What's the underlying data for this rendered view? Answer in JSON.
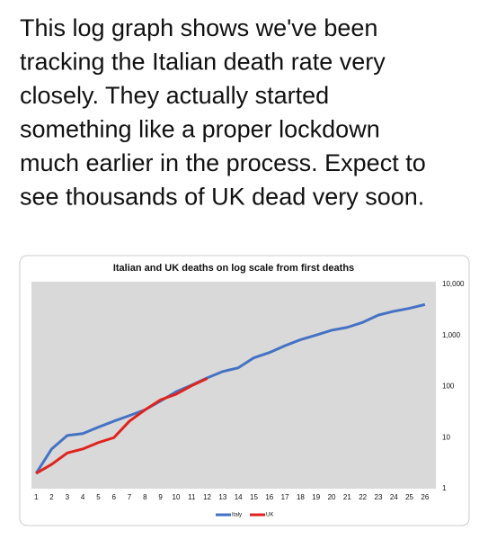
{
  "post": {
    "lines": [
      "This log graph shows we've been",
      "tracking the Italian death rate very",
      "closely. They actually started",
      "something like a proper lockdown",
      "much earlier in the process. Expect to",
      "see thousands of UK dead very soon."
    ]
  },
  "chart_data": {
    "type": "line",
    "title": "Italian and UK deaths on log scale from first deaths",
    "categories": [
      1,
      2,
      3,
      4,
      5,
      6,
      7,
      8,
      9,
      10,
      11,
      12,
      13,
      14,
      15,
      16,
      17,
      18,
      19,
      20,
      21,
      22,
      23,
      24,
      25,
      26
    ],
    "series": [
      {
        "name": "Italy",
        "color": "#4472c4",
        "values": [
          2,
          6,
          11,
          12,
          16,
          21,
          27,
          35,
          52,
          79,
          107,
          148,
          197,
          233,
          366,
          463,
          631,
          827,
          1016,
          1266,
          1441,
          1809,
          2503,
          2978,
          3405,
          4032
        ]
      },
      {
        "name": "UK",
        "color": "#e0231c",
        "values": [
          2,
          3,
          5,
          6,
          8,
          10,
          21,
          35,
          55,
          71,
          104,
          144,
          null,
          null,
          null,
          null,
          null,
          null,
          null,
          null,
          null,
          null,
          null,
          null,
          null,
          null
        ]
      }
    ],
    "ylim": [
      1,
      10000
    ],
    "scale": "log",
    "yticks": [
      1,
      10,
      100,
      {
        "value": 1000,
        "label": "1,000"
      },
      {
        "value": 10000,
        "label": "10,000"
      }
    ],
    "grid": false,
    "legend": "bottom"
  }
}
